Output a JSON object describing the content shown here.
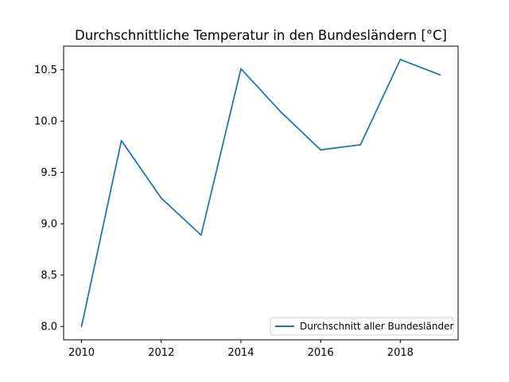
{
  "chart_data": {
    "type": "line",
    "title": "Durchschnittliche Temperatur in den Bundesländern [°C]",
    "xlabel": "",
    "ylabel": "",
    "x": [
      2010,
      2011,
      2012,
      2013,
      2014,
      2015,
      2016,
      2017,
      2018,
      2019
    ],
    "series": [
      {
        "name": "Durchschnitt aller Bundesländer",
        "color": "#1f77b4",
        "values": [
          8.0,
          9.81,
          9.25,
          8.89,
          10.51,
          10.09,
          9.72,
          9.77,
          10.6,
          10.45
        ]
      }
    ],
    "xlim": [
      2009.55,
      2019.45
    ],
    "ylim": [
      7.87,
      10.73
    ],
    "xticks": [
      2010,
      2012,
      2014,
      2016,
      2018
    ],
    "xtick_labels": [
      "2010",
      "2012",
      "2014",
      "2016",
      "2018"
    ],
    "yticks": [
      8.0,
      8.5,
      9.0,
      9.5,
      10.0,
      10.5
    ],
    "ytick_labels": [
      "8.0",
      "8.5",
      "9.0",
      "9.5",
      "10.0",
      "10.5"
    ],
    "grid": false,
    "legend_position": "lower-right"
  }
}
